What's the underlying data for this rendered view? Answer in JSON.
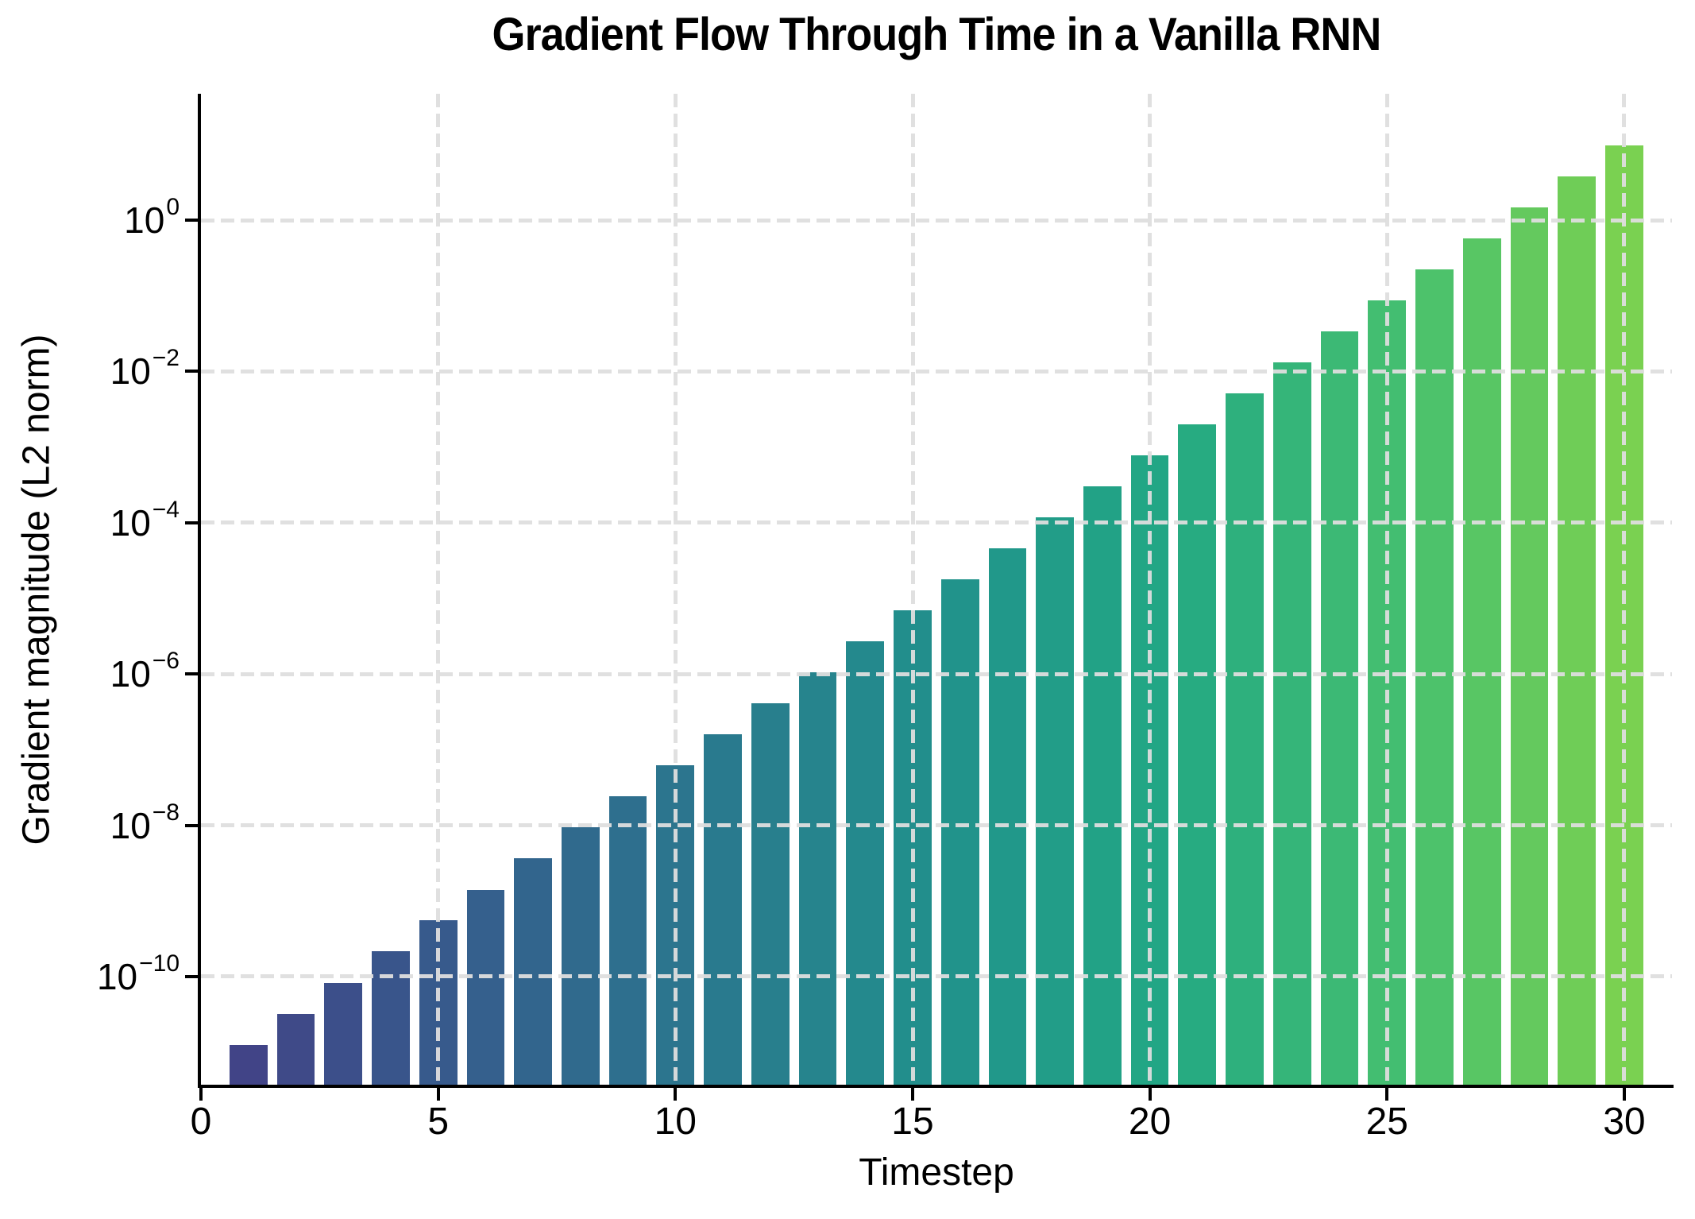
{
  "chart_data": {
    "type": "bar",
    "title": "Gradient Flow Through Time in a Vanilla RNN",
    "xlabel": "Timestep",
    "ylabel": "Gradient magnitude (L2 norm)",
    "y_scale": "log",
    "x_scale": "linear",
    "x": [
      1,
      2,
      3,
      4,
      5,
      6,
      7,
      8,
      9,
      10,
      11,
      12,
      13,
      14,
      15,
      16,
      17,
      18,
      19,
      20,
      21,
      22,
      23,
      24,
      25,
      26,
      27,
      28,
      29,
      30
    ],
    "values": [
      1.26e-11,
      3.24e-11,
      8.32e-11,
      2.14e-10,
      5.5e-10,
      1.41e-09,
      3.63e-09,
      9.33e-09,
      2.4e-08,
      6.17e-08,
      1.58e-07,
      4.07e-07,
      1.05e-06,
      2.69e-06,
      6.92e-06,
      1.78e-05,
      4.57e-05,
      0.000117,
      0.000302,
      0.000776,
      0.002,
      0.00513,
      0.0132,
      0.0339,
      0.0871,
      0.224,
      0.575,
      1.48,
      3.8,
      9.77
    ],
    "bar_colors": [
      "#414487",
      "#3f4a88",
      "#3c4f8a",
      "#39558b",
      "#375a8c",
      "#35608d",
      "#32658d",
      "#306a8d",
      "#2e6f8e",
      "#2c758e",
      "#297a8e",
      "#287f8d",
      "#26848d",
      "#24898d",
      "#228e8c",
      "#21938b",
      "#21988a",
      "#229d88",
      "#22a286",
      "#22a685",
      "#27ab81",
      "#2eb07d",
      "#35b579",
      "#3cb975",
      "#43be71",
      "#4dc26b",
      "#58c664",
      "#64c95e",
      "#6fcd57",
      "#7ad151"
    ],
    "x_ticks": [
      0,
      5,
      10,
      15,
      20,
      25,
      30
    ],
    "y_tick_exponents": [
      0,
      -2,
      -4,
      -6,
      -8,
      -10
    ],
    "xlim": [
      0,
      31
    ],
    "ylim": [
      3.7e-12,
      47.0
    ],
    "bar_width": 0.8,
    "grid": {
      "style": "dashed",
      "color": "#dedede",
      "vertical_at": [
        5,
        10,
        15,
        20,
        25,
        30
      ]
    },
    "legend": "none",
    "colors": {
      "background": "#ffffff",
      "text": "#000000",
      "spine": "#000000"
    }
  }
}
